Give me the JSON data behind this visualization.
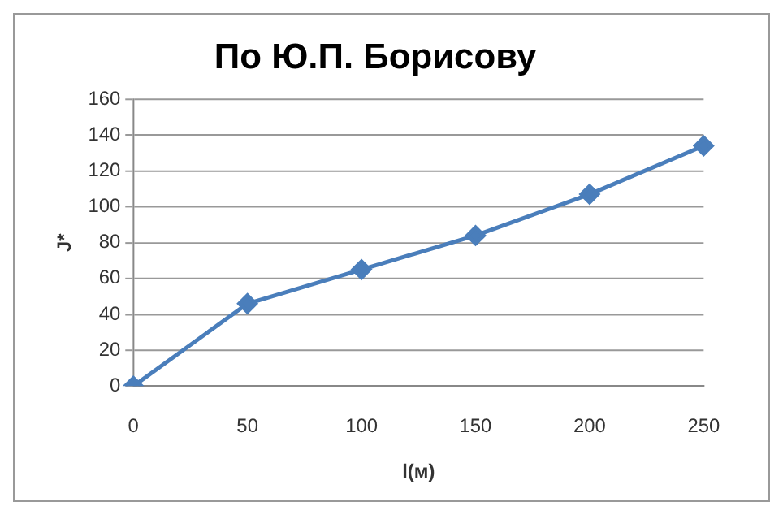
{
  "chart_data": {
    "type": "line",
    "title": "По Ю.П. Борисову",
    "xlabel": "l(м)",
    "ylabel": "J*",
    "categories": [
      "0",
      "50",
      "100",
      "150",
      "200",
      "250"
    ],
    "series": [
      {
        "color": "#4a7ebb",
        "values": [
          0,
          46,
          65,
          84,
          107,
          134
        ]
      }
    ],
    "ylim": [
      0,
      160
    ],
    "yticks": [
      0,
      20,
      40,
      60,
      80,
      100,
      120,
      140,
      160
    ],
    "grid": "y",
    "legend": false,
    "marker": "diamond",
    "line_style": "solid"
  }
}
